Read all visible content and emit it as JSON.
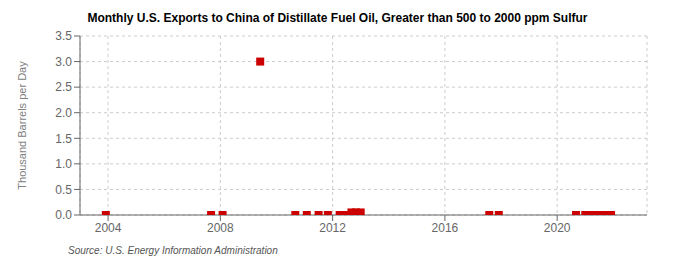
{
  "chart_data": {
    "type": "scatter",
    "title": "Monthly U.S. Exports to China of Distillate Fuel Oil, Greater than 500 to 2000 ppm Sulfur",
    "y_label": "Thousand Barrels per Day",
    "annotations": [
      "Source: U.S. Energy Information Administration"
    ],
    "x": [
      2003.92,
      2007.67,
      2008.08,
      2009.42,
      2010.67,
      2011.08,
      2011.5,
      2011.83,
      2012.25,
      2012.42,
      2012.67,
      2012.83,
      2013.0,
      2017.58,
      2017.92,
      2020.67,
      2021.0,
      2021.17,
      2021.42,
      2021.67,
      2021.92
    ],
    "values": [
      0.0,
      0.0,
      0.0,
      3.0,
      0.0,
      0.0,
      0.0,
      0.0,
      0.0,
      0.0,
      0.05,
      0.05,
      0.05,
      0.0,
      0.0,
      0.0,
      0.0,
      0.0,
      0.0,
      0.0,
      0.0
    ],
    "color": "#cc0000",
    "marker": "square",
    "xlim": [
      2003.0,
      2023.2
    ],
    "ylim": [
      0,
      3.5
    ],
    "xticks": [
      2004,
      2008,
      2012,
      2016,
      2020
    ],
    "yticks": [
      {
        "value": 0,
        "label": "0.0"
      },
      0.5,
      {
        "value": 1,
        "label": "1.0"
      },
      1.5,
      {
        "value": 2,
        "label": "2.0"
      },
      2.5,
      {
        "value": 3,
        "label": "3.0"
      },
      3.5
    ],
    "grid": true
  }
}
